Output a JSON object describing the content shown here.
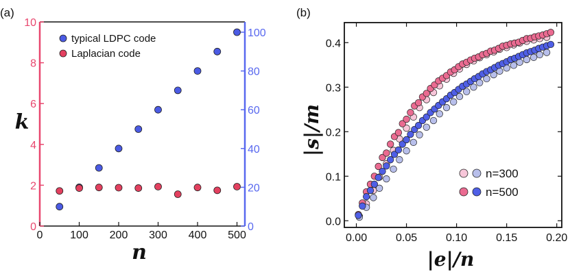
{
  "panels": {
    "a": {
      "label": "(a)"
    },
    "b": {
      "label": "(b)"
    }
  },
  "colors": {
    "pink_axis": "#e8476e",
    "blue_axis": "#5868ef",
    "typical_fill": "#4b5be4",
    "laplacian_fill": "#e3405f",
    "n300_pink": "#f7c6d9",
    "n300_blue": "#b8bfeb",
    "n500_pink": "#ea6b91",
    "n500_blue": "#4f5fe6",
    "marker_stroke": "#202020"
  },
  "chart_data": [
    {
      "type": "scatter",
      "panel": "a",
      "xlabel": "n",
      "ylabel": "k",
      "xlim": [
        0,
        520
      ],
      "ylim_left": [
        0,
        10
      ],
      "ylim_right": [
        0,
        105.3
      ],
      "x_ticks": [
        0,
        100,
        200,
        300,
        400,
        500
      ],
      "y_ticks_left": [
        0,
        2,
        4,
        6,
        8,
        10
      ],
      "y_ticks_right": [
        0,
        20,
        40,
        60,
        80,
        100
      ],
      "legend_position": "top-left",
      "series": [
        {
          "name": "typical LDPC code",
          "axis": "right",
          "x": [
            50,
            100,
            150,
            200,
            250,
            300,
            350,
            400,
            450,
            500
          ],
          "y": [
            10,
            20,
            30,
            40,
            50,
            60,
            70,
            80,
            90,
            100
          ]
        },
        {
          "name": "Laplacian code",
          "axis": "left",
          "x": [
            50,
            100,
            150,
            200,
            250,
            300,
            350,
            400,
            450,
            500
          ],
          "y": [
            1.72,
            1.86,
            1.89,
            1.88,
            1.86,
            1.93,
            1.56,
            1.89,
            1.75,
            1.93
          ]
        }
      ]
    },
    {
      "type": "scatter",
      "panel": "b",
      "xlabel": "|e|/n",
      "ylabel": "|s|/m",
      "xlim": [
        -0.012,
        0.205
      ],
      "ylim": [
        -0.015,
        0.445
      ],
      "x_ticks": [
        "0.00",
        "0.05",
        "0.10",
        "0.15",
        "0.20"
      ],
      "y_ticks": [
        "0.0",
        "0.1",
        "0.2",
        "0.3",
        "0.4"
      ],
      "legend_position": "lower-right",
      "legend_entries": [
        "n=300",
        "n=500"
      ],
      "series": [
        {
          "name": "n=300",
          "group": "pink",
          "x": [
            0.003,
            0.01,
            0.017,
            0.023,
            0.03,
            0.037,
            0.043,
            0.05,
            0.057,
            0.063,
            0.07,
            0.077,
            0.083,
            0.09,
            0.097,
            0.103,
            0.11,
            0.117,
            0.123,
            0.13,
            0.137,
            0.143,
            0.15,
            0.157,
            0.163,
            0.17,
            0.177,
            0.183,
            0.19
          ],
          "y": [
            0.01,
            0.038,
            0.068,
            0.098,
            0.128,
            0.158,
            0.184,
            0.208,
            0.233,
            0.254,
            0.272,
            0.288,
            0.303,
            0.318,
            0.331,
            0.341,
            0.351,
            0.359,
            0.366,
            0.373,
            0.379,
            0.385,
            0.389,
            0.395,
            0.399,
            0.403,
            0.406,
            0.409,
            0.412
          ]
        },
        {
          "name": "n=300",
          "group": "blue",
          "x": [
            0.003,
            0.01,
            0.017,
            0.023,
            0.03,
            0.037,
            0.043,
            0.05,
            0.057,
            0.063,
            0.07,
            0.077,
            0.083,
            0.09,
            0.097,
            0.103,
            0.11,
            0.117,
            0.123,
            0.13,
            0.137,
            0.143,
            0.15,
            0.157,
            0.163,
            0.17,
            0.177,
            0.183,
            0.19
          ],
          "y": [
            0.008,
            0.03,
            0.052,
            0.073,
            0.094,
            0.116,
            0.137,
            0.157,
            0.176,
            0.193,
            0.21,
            0.225,
            0.24,
            0.254,
            0.267,
            0.279,
            0.29,
            0.3,
            0.31,
            0.319,
            0.328,
            0.336,
            0.343,
            0.349,
            0.356,
            0.362,
            0.367,
            0.373,
            0.378
          ]
        },
        {
          "name": "n=500",
          "group": "pink",
          "x": [
            0.002,
            0.006,
            0.01,
            0.014,
            0.018,
            0.022,
            0.026,
            0.03,
            0.034,
            0.038,
            0.042,
            0.046,
            0.05,
            0.054,
            0.058,
            0.062,
            0.066,
            0.07,
            0.074,
            0.078,
            0.082,
            0.086,
            0.09,
            0.094,
            0.098,
            0.102,
            0.106,
            0.11,
            0.114,
            0.118,
            0.122,
            0.126,
            0.13,
            0.134,
            0.138,
            0.142,
            0.146,
            0.15,
            0.154,
            0.158,
            0.162,
            0.166,
            0.17,
            0.174,
            0.178,
            0.182,
            0.186,
            0.19,
            0.194
          ],
          "y": [
            0.014,
            0.04,
            0.065,
            0.082,
            0.1,
            0.122,
            0.142,
            0.152,
            0.172,
            0.189,
            0.198,
            0.218,
            0.228,
            0.243,
            0.258,
            0.265,
            0.278,
            0.286,
            0.297,
            0.305,
            0.314,
            0.32,
            0.326,
            0.334,
            0.339,
            0.346,
            0.352,
            0.356,
            0.361,
            0.365,
            0.368,
            0.373,
            0.376,
            0.381,
            0.383,
            0.387,
            0.392,
            0.394,
            0.397,
            0.399,
            0.401,
            0.405,
            0.409,
            0.41,
            0.413,
            0.415,
            0.417,
            0.42,
            0.423
          ]
        },
        {
          "name": "n=500",
          "group": "blue",
          "x": [
            0.002,
            0.006,
            0.01,
            0.014,
            0.018,
            0.022,
            0.026,
            0.03,
            0.034,
            0.038,
            0.042,
            0.046,
            0.05,
            0.054,
            0.058,
            0.062,
            0.066,
            0.07,
            0.074,
            0.078,
            0.082,
            0.086,
            0.09,
            0.094,
            0.098,
            0.102,
            0.106,
            0.11,
            0.114,
            0.118,
            0.122,
            0.126,
            0.13,
            0.134,
            0.138,
            0.142,
            0.146,
            0.15,
            0.154,
            0.158,
            0.162,
            0.166,
            0.17,
            0.174,
            0.178,
            0.182,
            0.186,
            0.19,
            0.194
          ],
          "y": [
            0.012,
            0.033,
            0.054,
            0.068,
            0.082,
            0.097,
            0.111,
            0.123,
            0.137,
            0.149,
            0.159,
            0.172,
            0.182,
            0.194,
            0.205,
            0.214,
            0.225,
            0.233,
            0.243,
            0.251,
            0.259,
            0.267,
            0.274,
            0.282,
            0.288,
            0.295,
            0.302,
            0.307,
            0.313,
            0.319,
            0.324,
            0.33,
            0.335,
            0.339,
            0.344,
            0.349,
            0.353,
            0.357,
            0.362,
            0.365,
            0.369,
            0.373,
            0.377,
            0.38,
            0.383,
            0.387,
            0.39,
            0.393,
            0.396
          ]
        }
      ]
    }
  ]
}
